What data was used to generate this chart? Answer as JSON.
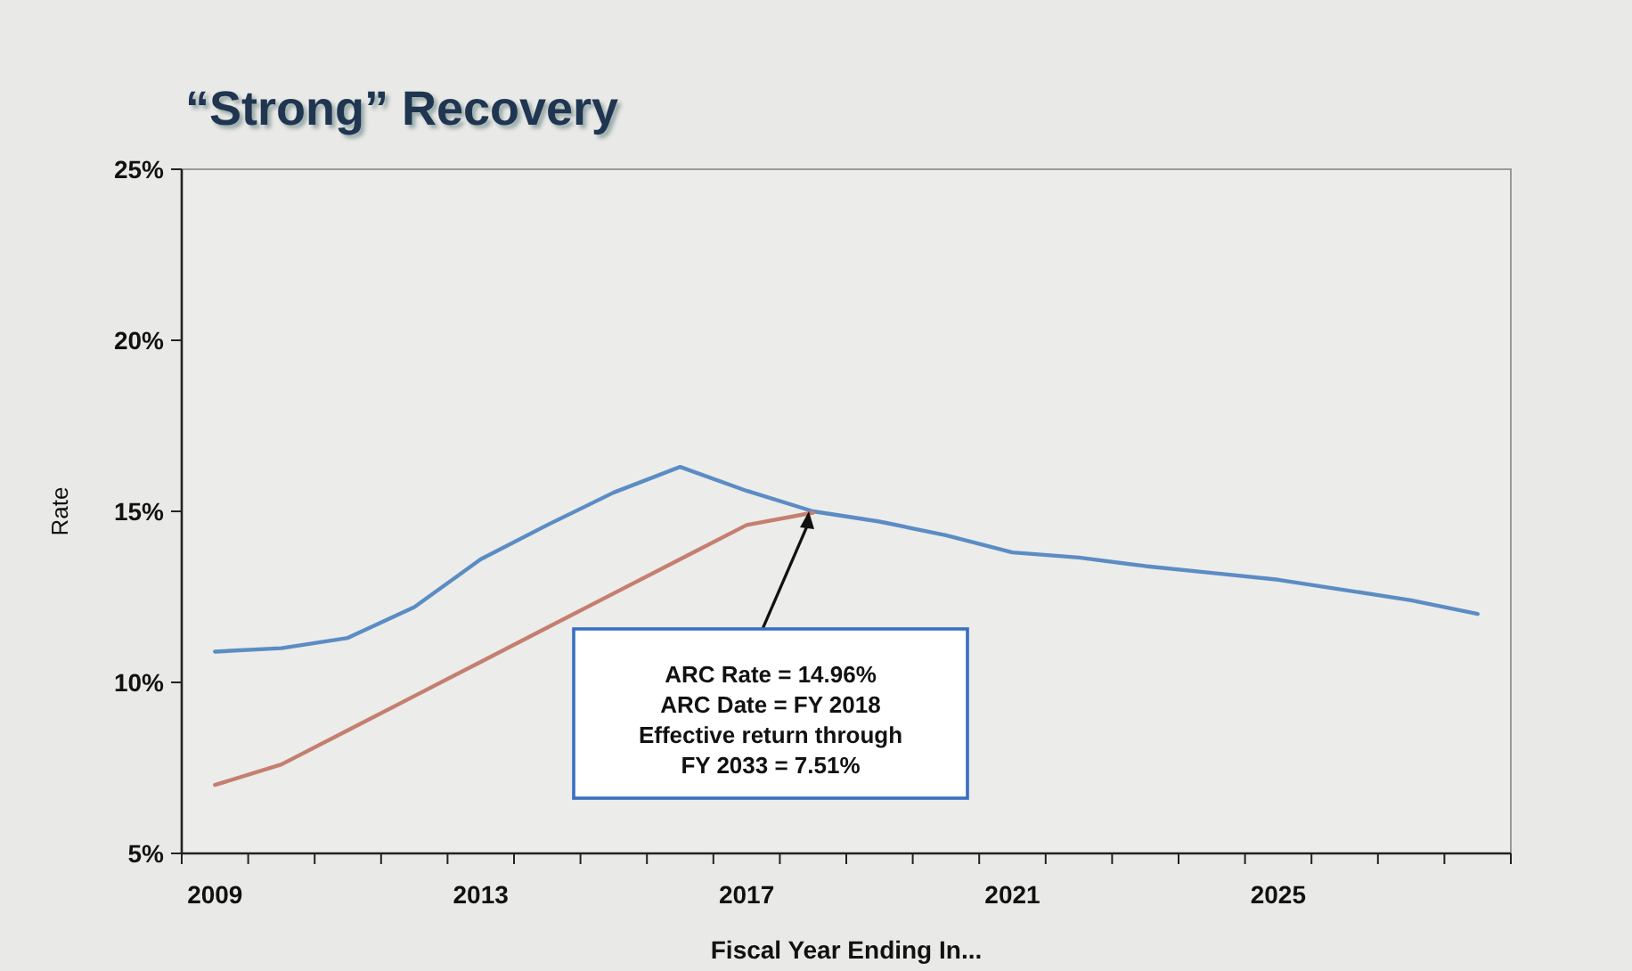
{
  "chart_data": {
    "type": "line",
    "title": "“Strong” Recovery",
    "xlabel": "Fiscal Year Ending In...",
    "ylabel": "Rate",
    "categories": [
      "2009",
      null,
      null,
      null,
      "2013",
      null,
      null,
      null,
      "2017",
      null,
      null,
      null,
      "2021",
      null,
      null,
      null,
      "2025",
      null,
      null,
      null
    ],
    "series": [
      {
        "color": "#5b8cc4",
        "values": [
          10.9,
          11.0,
          11.3,
          12.2,
          13.6,
          14.6,
          15.55,
          16.3,
          15.6,
          15.0,
          14.7,
          14.3,
          13.8,
          13.65,
          13.4,
          13.2,
          13.0,
          12.7,
          12.4,
          12.0
        ]
      },
      {
        "color": "#c47f70",
        "values": [
          7.0,
          7.6,
          8.6,
          9.6,
          10.6,
          11.6,
          12.6,
          13.6,
          14.6,
          14.96,
          null,
          null,
          null,
          null,
          null,
          null,
          null,
          null,
          null,
          null
        ]
      }
    ],
    "ylim": [
      5,
      25
    ],
    "yticks": [
      {
        "value": 5,
        "label": "5%"
      },
      {
        "value": 10,
        "label": "10%"
      },
      {
        "value": 15,
        "label": "15%"
      },
      {
        "value": 20,
        "label": "20%"
      },
      {
        "value": 25,
        "label": "25%"
      }
    ],
    "grid": false,
    "marker": "none",
    "line_style": "solid",
    "annotations": [
      "ARC Rate = 14.96%\nARC Date = FY 2018\nEffective return through\nFY 2033 = 7.51%"
    ]
  }
}
